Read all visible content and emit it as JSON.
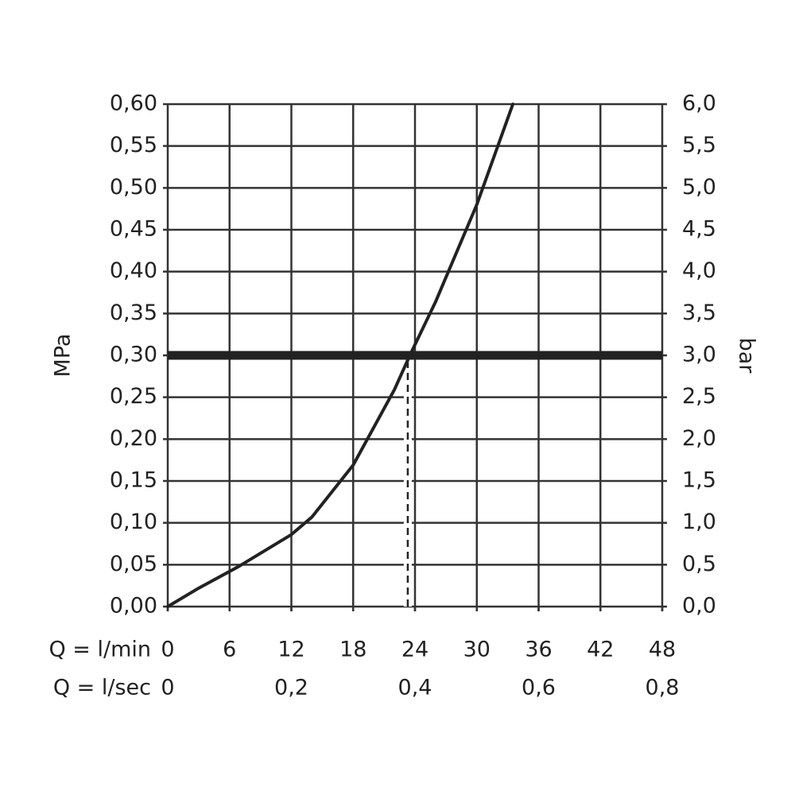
{
  "chart_data": {
    "type": "line",
    "y_label": "MPa",
    "y2_label": "bar",
    "x_label": "Q = l/min",
    "x2_label": "Q = l/sec",
    "x": [
      0,
      3,
      6.9,
      12,
      14,
      18,
      22,
      23.5,
      26,
      30,
      33.5
    ],
    "series": [
      {
        "name": "Q",
        "color": "#222222",
        "values": [
          0,
          0.022,
          0.048,
          0.086,
          0.107,
          0.169,
          0.259,
          0.3,
          0.364,
          0.48,
          0.6
        ]
      }
    ],
    "reference_y": 0.3,
    "reference_x": 23.3,
    "xlim": [
      0,
      48
    ],
    "xticks": [
      0,
      6,
      12,
      18,
      24,
      30,
      36,
      42,
      48
    ],
    "x2lim": [
      0,
      0.8
    ],
    "x2ticks": [
      0,
      {
        "value": 0.2,
        "label": "0,2"
      },
      {
        "value": 0.4,
        "label": "0,4"
      },
      {
        "value": 0.6,
        "label": "0,6"
      },
      {
        "value": 0.8,
        "label": "0,8"
      }
    ],
    "ylim": [
      0,
      0.6
    ],
    "yticks": [
      {
        "value": 0,
        "label": "0,00"
      },
      {
        "value": 0.05,
        "label": "0,05"
      },
      {
        "value": 0.1,
        "label": "0,10"
      },
      {
        "value": 0.15,
        "label": "0,15"
      },
      {
        "value": 0.2,
        "label": "0,20"
      },
      {
        "value": 0.25,
        "label": "0,25"
      },
      {
        "value": 0.3,
        "label": "0,30"
      },
      {
        "value": 0.35,
        "label": "0,35"
      },
      {
        "value": 0.4,
        "label": "0,40"
      },
      {
        "value": 0.45,
        "label": "0,45"
      },
      {
        "value": 0.5,
        "label": "0,50"
      },
      {
        "value": 0.55,
        "label": "0,55"
      },
      {
        "value": 0.6,
        "label": "0,60"
      }
    ],
    "y2lim": [
      0,
      6
    ],
    "y2ticks": [
      {
        "value": 0,
        "label": "0,0"
      },
      {
        "value": 0.5,
        "label": "0,5"
      },
      {
        "value": 1,
        "label": "1,0"
      },
      {
        "value": 1.5,
        "label": "1,5"
      },
      {
        "value": 2,
        "label": "2,0"
      },
      {
        "value": 2.5,
        "label": "2,5"
      },
      {
        "value": 3,
        "label": "3,0"
      },
      {
        "value": 3.5,
        "label": "3,5"
      },
      {
        "value": 4,
        "label": "4,0"
      },
      {
        "value": 4.5,
        "label": "4,5"
      },
      {
        "value": 5,
        "label": "5,0"
      },
      {
        "value": 5.5,
        "label": "5,5"
      },
      {
        "value": 6,
        "label": "6,0"
      }
    ],
    "grid": true
  }
}
